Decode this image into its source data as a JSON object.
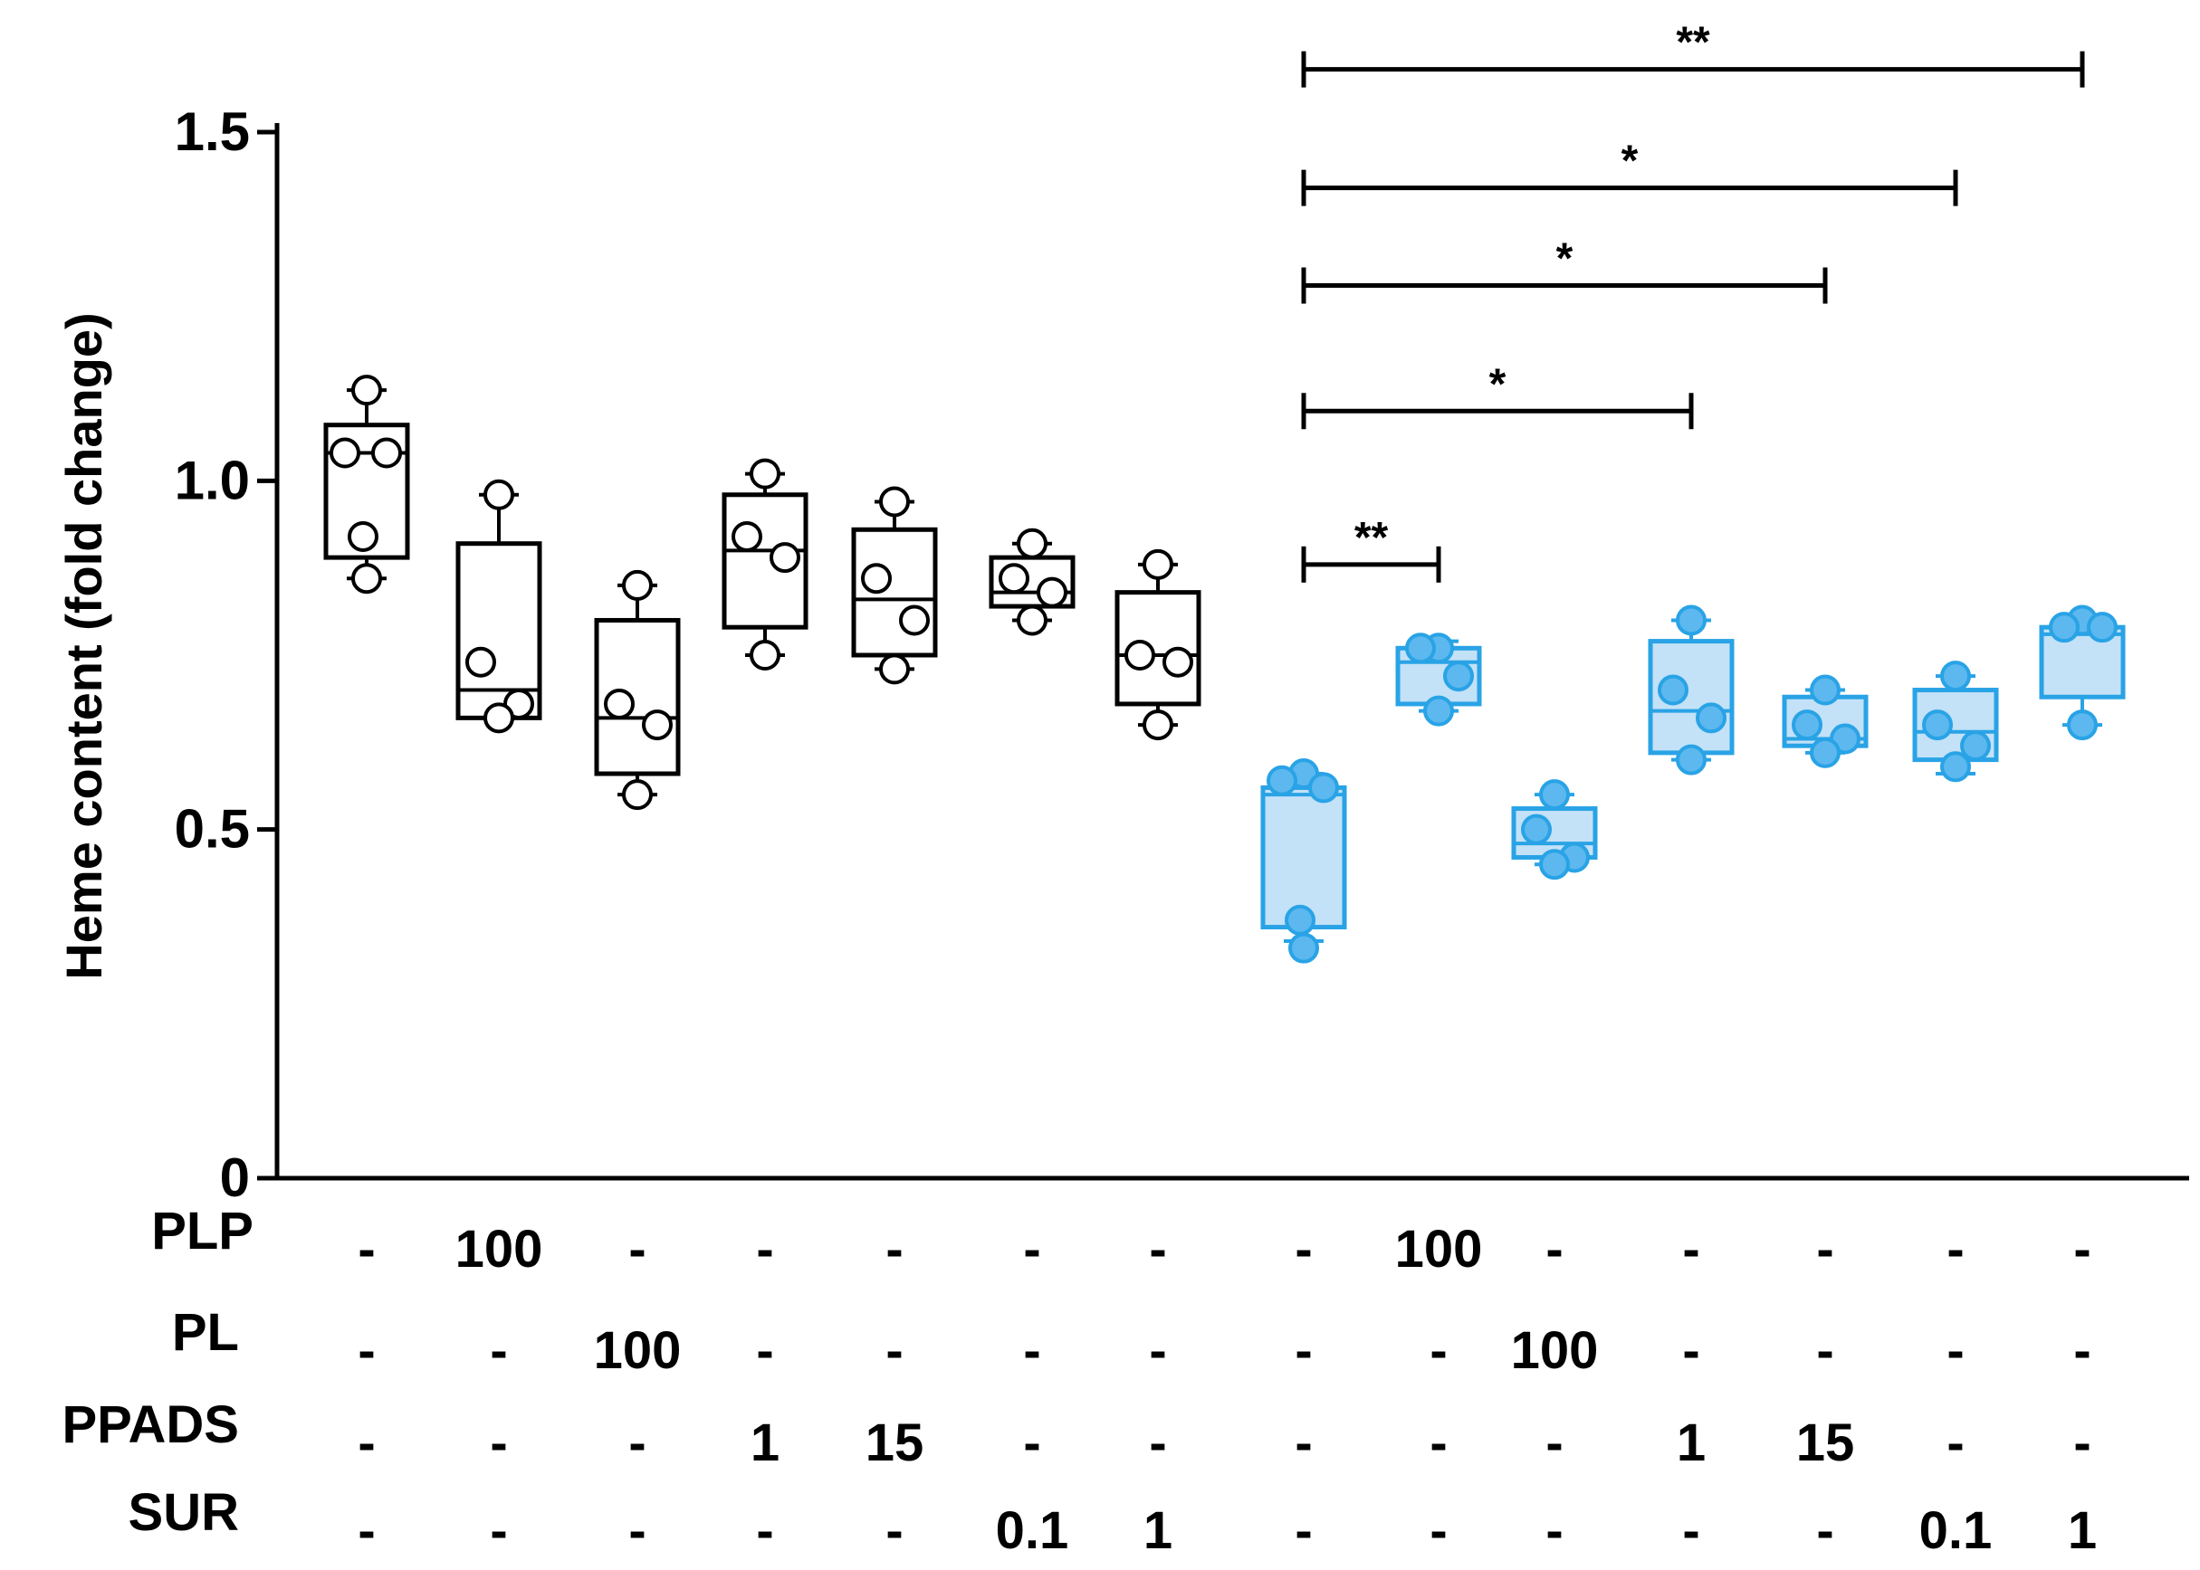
{
  "chart_data": {
    "type": "box",
    "ylabel": "Heme content (fold change)",
    "ylim": [
      0,
      1.5
    ],
    "yticks": [
      0,
      0.5,
      1.0,
      1.5
    ],
    "ytick_labels": [
      "0",
      "0.5",
      "1.0",
      "1.5"
    ],
    "grid": false,
    "groups": [
      {
        "style": "open",
        "color": "#000000",
        "box": [
          0.89,
          1.04,
          1.08
        ],
        "whisker": [
          0.86,
          1.13
        ],
        "points": [
          1.13,
          1.04,
          1.04,
          0.92,
          0.86
        ]
      },
      {
        "style": "open",
        "color": "#000000",
        "box": [
          0.66,
          0.7,
          0.91
        ],
        "whisker": [
          0.66,
          0.98
        ],
        "points": [
          0.98,
          0.74,
          0.68,
          0.66
        ]
      },
      {
        "style": "open",
        "color": "#000000",
        "box": [
          0.58,
          0.66,
          0.8
        ],
        "whisker": [
          0.55,
          0.85
        ],
        "points": [
          0.85,
          0.68,
          0.65,
          0.55
        ]
      },
      {
        "style": "open",
        "color": "#000000",
        "box": [
          0.79,
          0.9,
          0.98
        ],
        "whisker": [
          0.75,
          1.01
        ],
        "points": [
          1.01,
          0.92,
          0.89,
          0.75
        ]
      },
      {
        "style": "open",
        "color": "#000000",
        "box": [
          0.75,
          0.83,
          0.93
        ],
        "whisker": [
          0.73,
          0.97
        ],
        "points": [
          0.97,
          0.86,
          0.8,
          0.73
        ]
      },
      {
        "style": "open",
        "color": "#000000",
        "box": [
          0.82,
          0.84,
          0.89
        ],
        "whisker": [
          0.8,
          0.91
        ],
        "points": [
          0.91,
          0.86,
          0.84,
          0.8
        ]
      },
      {
        "style": "open",
        "color": "#000000",
        "box": [
          0.68,
          0.75,
          0.84
        ],
        "whisker": [
          0.65,
          0.88
        ],
        "points": [
          0.88,
          0.75,
          0.74,
          0.65
        ]
      },
      {
        "style": "filled",
        "color": "#29a3e6",
        "box": [
          0.36,
          0.55,
          0.56
        ],
        "whisker": [
          0.34,
          0.58
        ],
        "points": [
          0.58,
          0.57,
          0.56,
          0.37,
          0.33
        ]
      },
      {
        "style": "filled",
        "color": "#29a3e6",
        "box": [
          0.68,
          0.74,
          0.76
        ],
        "whisker": [
          0.67,
          0.77
        ],
        "points": [
          0.76,
          0.76,
          0.72,
          0.67
        ]
      },
      {
        "style": "filled",
        "color": "#29a3e6",
        "box": [
          0.46,
          0.48,
          0.53
        ],
        "whisker": [
          0.45,
          0.55
        ],
        "points": [
          0.55,
          0.5,
          0.46,
          0.45
        ]
      },
      {
        "style": "filled",
        "color": "#29a3e6",
        "box": [
          0.61,
          0.67,
          0.77
        ],
        "whisker": [
          0.6,
          0.8
        ],
        "points": [
          0.8,
          0.7,
          0.66,
          0.6
        ]
      },
      {
        "style": "filled",
        "color": "#29a3e6",
        "box": [
          0.62,
          0.63,
          0.69
        ],
        "whisker": [
          0.61,
          0.7
        ],
        "points": [
          0.7,
          0.65,
          0.63,
          0.61
        ]
      },
      {
        "style": "filled",
        "color": "#29a3e6",
        "box": [
          0.6,
          0.64,
          0.7
        ],
        "whisker": [
          0.58,
          0.72
        ],
        "points": [
          0.72,
          0.65,
          0.62,
          0.59
        ]
      },
      {
        "style": "filled",
        "color": "#29a3e6",
        "box": [
          0.69,
          0.78,
          0.79
        ],
        "whisker": [
          0.65,
          0.8
        ],
        "points": [
          0.8,
          0.79,
          0.79,
          0.65
        ]
      }
    ],
    "significance": [
      {
        "from": 8,
        "to": 9,
        "label": "**",
        "y": 0.88
      },
      {
        "from": 8,
        "to": 11,
        "label": "*",
        "y": 1.1
      },
      {
        "from": 8,
        "to": 12,
        "label": "*",
        "y": 1.28
      },
      {
        "from": 8,
        "to": 13,
        "label": "*",
        "y": 1.42
      },
      {
        "from": 8,
        "to": 14,
        "label": "**",
        "y": 1.59
      }
    ],
    "treatment_table": [
      {
        "label": "PLP",
        "values": [
          "-",
          "100",
          "-",
          "-",
          "-",
          "-",
          "-",
          "-",
          "100",
          "-",
          "-",
          "-",
          "-",
          "-"
        ]
      },
      {
        "label": "PL",
        "values": [
          "-",
          "-",
          "100",
          "-",
          "-",
          "-",
          "-",
          "-",
          "-",
          "100",
          "-",
          "-",
          "-",
          "-"
        ]
      },
      {
        "label": "PPADS",
        "values": [
          "-",
          "-",
          "-",
          "1",
          "15",
          "-",
          "-",
          "-",
          "-",
          "-",
          "1",
          "15",
          "-",
          "-"
        ]
      },
      {
        "label": "SUR",
        "values": [
          "-",
          "-",
          "-",
          "-",
          "-",
          "0.1",
          "1",
          "-",
          "-",
          "-",
          "-",
          "-",
          "0.1",
          "1"
        ]
      }
    ]
  }
}
